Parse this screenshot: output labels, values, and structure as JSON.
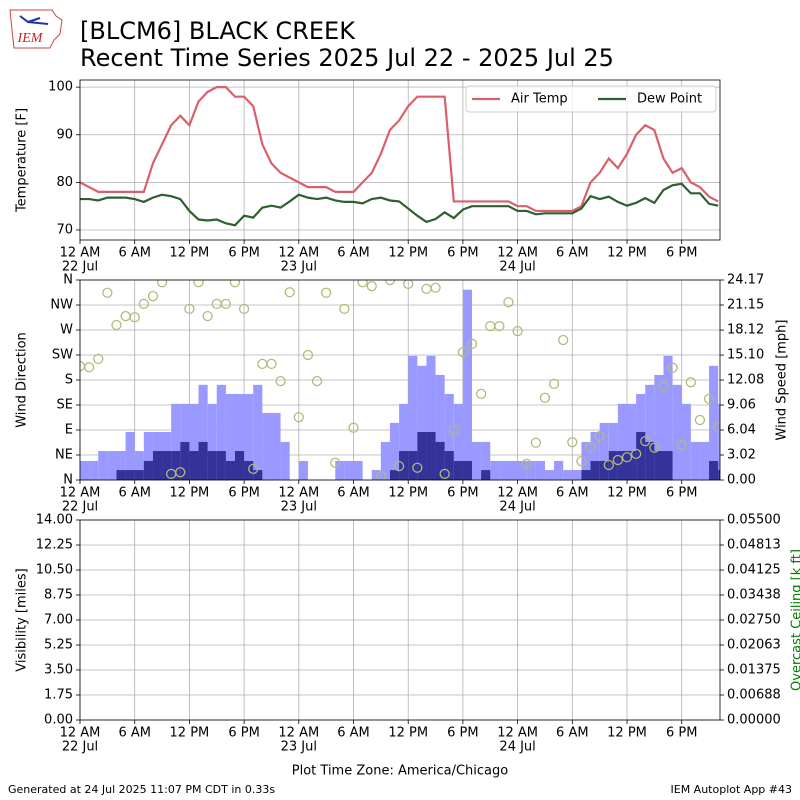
{
  "header": {
    "logo": "IEM",
    "title": "[BLCM6] BLACK CREEK",
    "subtitle": "Recent Time Series 2025 Jul 22 - 2025 Jul 25"
  },
  "footer": {
    "left": "Generated at 24 Jul 2025 11:07 PM CDT in 0.33s",
    "right": "IEM Autoplot App #43"
  },
  "chart_data": [
    {
      "type": "line",
      "ylabel": "Temperature [F]",
      "grid": true,
      "legend": "upper right",
      "x": [
        0,
        1,
        2,
        3,
        4,
        5,
        6,
        7,
        8,
        9,
        10,
        11,
        12,
        13,
        14,
        15,
        16,
        17,
        18,
        19,
        20,
        21,
        22,
        23,
        24,
        25,
        26,
        27,
        28,
        29,
        30,
        31,
        32,
        33,
        34,
        35,
        36,
        37,
        38,
        39,
        40,
        41,
        42,
        43,
        44,
        45,
        46,
        47,
        48,
        49,
        50,
        51,
        52,
        53,
        54,
        55,
        56,
        57,
        58,
        59,
        60,
        61,
        62,
        63,
        64,
        65,
        66,
        67,
        68,
        69,
        70
      ],
      "xlim": [
        0,
        70.2
      ],
      "xticks": [
        {
          "value": 0,
          "label": "12 AM"
        },
        {
          "value": 6,
          "label": "6 AM"
        },
        {
          "value": 12,
          "label": "12 PM"
        },
        {
          "value": 18,
          "label": "6 PM"
        },
        {
          "value": 24,
          "label": "12 AM"
        },
        {
          "value": 30,
          "label": "6 AM"
        },
        {
          "value": 36,
          "label": "12 PM"
        },
        {
          "value": 42,
          "label": "6 PM"
        },
        {
          "value": 48,
          "label": "12 AM"
        },
        {
          "value": 54,
          "label": "6 AM"
        },
        {
          "value": 60,
          "label": "12 PM"
        },
        {
          "value": 66,
          "label": "6 PM"
        }
      ],
      "xdates": [
        {
          "value": 0,
          "label": "22 Jul"
        },
        {
          "value": 24,
          "label": "23 Jul"
        },
        {
          "value": 48,
          "label": "24 Jul"
        }
      ],
      "ylim": [
        67.9,
        101.5
      ],
      "yticks": [
        70,
        80,
        90,
        100
      ],
      "series": [
        {
          "name": "Air Temp",
          "color": "#d9606a",
          "values": [
            80,
            79,
            78,
            78,
            78,
            78,
            78,
            78,
            84,
            88,
            92,
            94,
            92,
            97,
            99,
            100,
            100,
            98,
            98,
            96,
            88,
            84,
            82,
            81,
            80,
            79,
            79,
            79,
            78,
            78,
            78,
            80,
            82,
            86,
            91,
            93,
            96,
            98,
            98,
            98,
            98,
            76,
            76,
            76,
            76,
            76,
            76,
            76,
            75,
            75,
            74,
            74,
            74,
            74,
            74,
            75,
            80,
            82,
            85,
            83,
            86,
            90,
            92,
            91,
            85,
            82,
            83,
            80,
            79,
            77,
            76
          ]
        },
        {
          "name": "Dew Point",
          "color": "#2f5f2f",
          "values": [
            76.5,
            76.5,
            76.2,
            76.8,
            76.8,
            76.8,
            76.5,
            75.9,
            76.8,
            77.4,
            77.1,
            76.5,
            74,
            72.2,
            72,
            72.2,
            71.4,
            71,
            73,
            72.6,
            74.7,
            75.1,
            74.7,
            76,
            77.4,
            76.8,
            76.5,
            76.8,
            76.2,
            75.9,
            75.9,
            75.6,
            76.5,
            76.8,
            76.2,
            76,
            74.5,
            73,
            71.7,
            72.3,
            73.7,
            72.5,
            74.3,
            75,
            75,
            75,
            75,
            75,
            74,
            74,
            73.3,
            73.5,
            73.5,
            73.5,
            73.5,
            74.5,
            77.1,
            76.5,
            77,
            75.9,
            75.1,
            75.7,
            76.7,
            75.7,
            78.4,
            79.4,
            79.7,
            77.7,
            77.7,
            75.5,
            75.1
          ]
        }
      ]
    },
    {
      "type": "bar",
      "ylabel": "Wind Direction",
      "y2label": "Wind Speed [mph]",
      "grid": true,
      "x": [
        0,
        1,
        2,
        3,
        4,
        5,
        6,
        7,
        8,
        9,
        10,
        11,
        12,
        13,
        14,
        15,
        16,
        17,
        18,
        19,
        20,
        21,
        22,
        23,
        24,
        25,
        26,
        27,
        28,
        29,
        30,
        31,
        32,
        33,
        34,
        35,
        36,
        37,
        38,
        39,
        40,
        41,
        42,
        43,
        44,
        45,
        46,
        47,
        48,
        49,
        50,
        51,
        52,
        53,
        54,
        55,
        56,
        57,
        58,
        59,
        60,
        61,
        62,
        63,
        64,
        65,
        66,
        67,
        68,
        69,
        70
      ],
      "xlim": [
        0,
        70.2
      ],
      "xticks": [
        {
          "value": 0,
          "label": "12 AM"
        },
        {
          "value": 6,
          "label": "6 AM"
        },
        {
          "value": 12,
          "label": "12 PM"
        },
        {
          "value": 18,
          "label": "6 PM"
        },
        {
          "value": 24,
          "label": "12 AM"
        },
        {
          "value": 30,
          "label": "6 AM"
        },
        {
          "value": 36,
          "label": "12 PM"
        },
        {
          "value": 42,
          "label": "6 PM"
        },
        {
          "value": 48,
          "label": "12 AM"
        },
        {
          "value": 54,
          "label": "6 AM"
        },
        {
          "value": 60,
          "label": "12 PM"
        },
        {
          "value": 66,
          "label": "6 PM"
        }
      ],
      "xdates": [
        {
          "value": 0,
          "label": "22 Jul"
        },
        {
          "value": 24,
          "label": "23 Jul"
        },
        {
          "value": 48,
          "label": "24 Jul"
        }
      ],
      "ylim": [
        0,
        360
      ],
      "yticks": [
        {
          "value": 0,
          "label": "N"
        },
        {
          "value": 45,
          "label": "NE"
        },
        {
          "value": 90,
          "label": "E"
        },
        {
          "value": 135,
          "label": "SE"
        },
        {
          "value": 180,
          "label": "S"
        },
        {
          "value": 225,
          "label": "SW"
        },
        {
          "value": 270,
          "label": "W"
        },
        {
          "value": 315,
          "label": "NW"
        },
        {
          "value": 360,
          "label": "N"
        }
      ],
      "y2lim": [
        0,
        24.17
      ],
      "y2ticks": [
        {
          "value": 0,
          "label": "0.00"
        },
        3.02,
        6.04,
        9.06,
        12.08,
        {
          "value": 15.1,
          "label": "15.10"
        },
        18.12,
        21.15,
        24.17
      ],
      "series": [
        {
          "type": "bar",
          "axis": "y2",
          "color": "#9999ff",
          "values": [
            2.3,
            2.3,
            3.5,
            3.5,
            3.5,
            5.8,
            3.5,
            5.8,
            5.8,
            5.8,
            9.2,
            9.2,
            9.2,
            11.5,
            9.2,
            11.5,
            10.4,
            10.4,
            10.4,
            11.5,
            8.1,
            8.1,
            4.6,
            0,
            2.3,
            0,
            0,
            0,
            2.3,
            2.3,
            2.3,
            0,
            1.2,
            4.6,
            6.9,
            9.2,
            15,
            13.8,
            15,
            12.7,
            10.4,
            9.2,
            23,
            4.6,
            4.6,
            2.3,
            2.3,
            2.3,
            2.3,
            2.3,
            2.3,
            1.2,
            2.3,
            1.2,
            1.2,
            4.6,
            5.8,
            6.9,
            6.9,
            9.2,
            9.2,
            10.4,
            11.5,
            12.7,
            15,
            11.5,
            9.2,
            4.6,
            4.6,
            13.8,
            9.2
          ]
        },
        {
          "type": "bar",
          "axis": "y2",
          "color": "#333399",
          "values": [
            0,
            0,
            0,
            0,
            1.2,
            1.2,
            1.2,
            2.3,
            3.5,
            3.5,
            3.5,
            4.6,
            3.5,
            4.6,
            3.5,
            3.5,
            2.3,
            3.5,
            2.3,
            1.2,
            0,
            0,
            0,
            0,
            0,
            0,
            0,
            0,
            0,
            0,
            0,
            0,
            0,
            0,
            1.2,
            3.5,
            3.5,
            5.8,
            5.8,
            4.6,
            3.5,
            2.3,
            2.3,
            0,
            1.2,
            0,
            0,
            0,
            0,
            0,
            0,
            0,
            0,
            0,
            0,
            1.2,
            2.3,
            2.3,
            3.5,
            3.5,
            3.5,
            5.8,
            4.6,
            3.5,
            3.5,
            0,
            0,
            0,
            0,
            2.3,
            1.2
          ]
        },
        {
          "type": "scatter",
          "color": "#b5b87a",
          "values": [
            205,
            203,
            218,
            337,
            279,
            295,
            293,
            317,
            331,
            356,
            11,
            14,
            308,
            356,
            295,
            317,
            317,
            356,
            308,
            20,
            209,
            209,
            178,
            338,
            113,
            225,
            178,
            337,
            31,
            308,
            94,
            356,
            349,
            7,
            360,
            25,
            353,
            22,
            344,
            346,
            11,
            90,
            230,
            245,
            155,
            277,
            277,
            320,
            268,
            29,
            67,
            148,
            173,
            252,
            68,
            34,
            59,
            79,
            27,
            36,
            41,
            47,
            70,
            58,
            169,
            202,
            63,
            176,
            108,
            146,
            95
          ]
        }
      ]
    },
    {
      "type": "line",
      "ylabel": "Visibility [miles]",
      "y2label": "Overcast Ceiling [k ft]",
      "y2label_color": "#008000",
      "xlabel": "Plot Time Zone: America/Chicago",
      "grid": true,
      "xlim": [
        0,
        70.2
      ],
      "xticks": [
        {
          "value": 0,
          "label": "12 AM"
        },
        {
          "value": 6,
          "label": "6 AM"
        },
        {
          "value": 12,
          "label": "12 PM"
        },
        {
          "value": 18,
          "label": "6 PM"
        },
        {
          "value": 24,
          "label": "12 AM"
        },
        {
          "value": 30,
          "label": "6 AM"
        },
        {
          "value": 36,
          "label": "12 PM"
        },
        {
          "value": 42,
          "label": "6 PM"
        },
        {
          "value": 48,
          "label": "12 AM"
        },
        {
          "value": 54,
          "label": "6 AM"
        },
        {
          "value": 60,
          "label": "12 PM"
        },
        {
          "value": 66,
          "label": "6 PM"
        }
      ],
      "xdates": [
        {
          "value": 0,
          "label": "22 Jul"
        },
        {
          "value": 24,
          "label": "23 Jul"
        },
        {
          "value": 48,
          "label": "24 Jul"
        }
      ],
      "ylim": [
        0,
        14
      ],
      "yticks": [
        {
          "value": 0,
          "label": "0.00"
        },
        1.75,
        {
          "value": 3.5,
          "label": "3.50"
        },
        5.25,
        {
          "value": 7,
          "label": "7.00"
        },
        8.75,
        {
          "value": 10.5,
          "label": "10.50"
        },
        12.25,
        {
          "value": 14,
          "label": "14.00"
        }
      ],
      "y2lim": [
        0,
        0.055
      ],
      "y2ticks": [
        {
          "value": 0,
          "label": "0.00000"
        },
        0.00688,
        0.01375,
        0.02063,
        {
          "value": 0.0275,
          "label": "0.02750"
        },
        0.03438,
        0.04125,
        0.04813,
        {
          "value": 0.055,
          "label": "0.05500"
        }
      ],
      "series": []
    }
  ]
}
